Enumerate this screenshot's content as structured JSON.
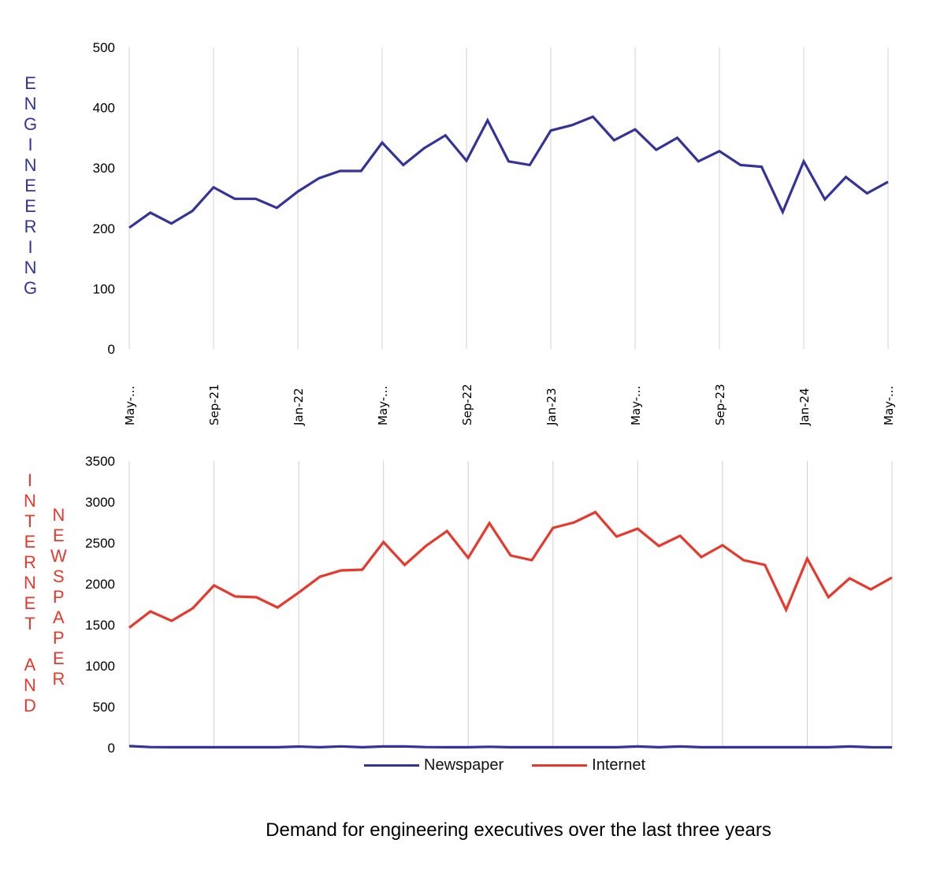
{
  "chart_data": [
    {
      "type": "line",
      "title": "",
      "ylabel": "ENGINEERING",
      "xlabel": "",
      "ylim": [
        0,
        500
      ],
      "yticks": [
        0,
        100,
        200,
        300,
        400,
        500
      ],
      "x": [
        "May-21",
        "Jun-21",
        "Jul-21",
        "Aug-21",
        "Sep-21",
        "Oct-21",
        "Nov-21",
        "Dec-21",
        "Jan-22",
        "Feb-22",
        "Mar-22",
        "Apr-22",
        "May-22",
        "Jun-22",
        "Jul-22",
        "Aug-22",
        "Sep-22",
        "Oct-22",
        "Nov-22",
        "Dec-22",
        "Jan-23",
        "Feb-23",
        "Mar-23",
        "Apr-23",
        "May-23",
        "Jun-23",
        "Jul-23",
        "Aug-23",
        "Sep-23",
        "Oct-23",
        "Nov-23",
        "Dec-23",
        "Jan-24",
        "Feb-24",
        "Mar-24",
        "Apr-24",
        "May-24"
      ],
      "xtick_labels": [
        {
          "index": 0,
          "label": "May-..."
        },
        {
          "index": 4,
          "label": "Sep-21"
        },
        {
          "index": 8,
          "label": "Jan-22"
        },
        {
          "index": 12,
          "label": "May-..."
        },
        {
          "index": 16,
          "label": "Sep-22"
        },
        {
          "index": 20,
          "label": "Jan-23"
        },
        {
          "index": 24,
          "label": "May-..."
        },
        {
          "index": 28,
          "label": "Sep-23"
        },
        {
          "index": 32,
          "label": "Jan-24"
        },
        {
          "index": 36,
          "label": "May-..."
        }
      ],
      "grid": "vertical",
      "series": [
        {
          "name": "Engineering",
          "color": "#33339a",
          "values": [
            201,
            226,
            208,
            229,
            268,
            249,
            249,
            234,
            261,
            283,
            295,
            295,
            342,
            305,
            333,
            354,
            312,
            379,
            311,
            305,
            362,
            371,
            385,
            346,
            364,
            330,
            350,
            311,
            328,
            305,
            302,
            227,
            311,
            248,
            285,
            258,
            277
          ]
        }
      ]
    },
    {
      "type": "line",
      "title": "Demand for engineering executives over the last three years",
      "ylabel": [
        "INTERNET AND",
        "NEWSPAPER"
      ],
      "xlabel": "",
      "ylim": [
        0,
        3500
      ],
      "yticks": [
        0,
        500,
        1000,
        1500,
        2000,
        2500,
        3000,
        3500
      ],
      "x": [
        "May-21",
        "Jun-21",
        "Jul-21",
        "Aug-21",
        "Sep-21",
        "Oct-21",
        "Nov-21",
        "Dec-21",
        "Jan-22",
        "Feb-22",
        "Mar-22",
        "Apr-22",
        "May-22",
        "Jun-22",
        "Jul-22",
        "Aug-22",
        "Sep-22",
        "Oct-22",
        "Nov-22",
        "Dec-22",
        "Jan-23",
        "Feb-23",
        "Mar-23",
        "Apr-23",
        "May-23",
        "Jun-23",
        "Jul-23",
        "Aug-23",
        "Sep-23",
        "Oct-23",
        "Nov-23",
        "Dec-23",
        "Jan-24",
        "Feb-24",
        "Mar-24",
        "Apr-24",
        "May-24"
      ],
      "grid": "vertical",
      "legend": "bottom",
      "series": [
        {
          "name": "Newspaper",
          "color": "#33339a",
          "values": [
            20,
            8,
            6,
            6,
            6,
            6,
            6,
            6,
            14,
            6,
            16,
            6,
            15,
            15,
            8,
            6,
            6,
            12,
            6,
            6,
            6,
            6,
            6,
            6,
            15,
            6,
            15,
            6,
            6,
            6,
            6,
            6,
            6,
            6,
            15,
            6,
            5
          ]
        },
        {
          "name": "Internet",
          "color": "#e8382c",
          "values": [
            1465,
            1663,
            1548,
            1702,
            1981,
            1846,
            1837,
            1712,
            1894,
            2087,
            2163,
            2173,
            2510,
            2231,
            2462,
            2644,
            2317,
            2740,
            2346,
            2288,
            2683,
            2750,
            2875,
            2577,
            2673,
            2462,
            2587,
            2327,
            2471,
            2288,
            2231,
            1683,
            2308,
            1837,
            2067,
            1933,
            2077
          ]
        }
      ]
    }
  ],
  "labels": {
    "engineering": [
      "E",
      "N",
      "G",
      "I",
      "N",
      "E",
      "E",
      "R",
      "I",
      "N",
      "G"
    ],
    "internet_and": [
      "I",
      "N",
      "T",
      "E",
      "R",
      "N",
      "E",
      "T",
      "",
      "A",
      "N",
      "D"
    ],
    "newspaper": [
      "N",
      "E",
      "W",
      "S",
      "P",
      "A",
      "P",
      "E",
      "R"
    ]
  },
  "legend": {
    "newspaper": "Newspaper",
    "internet": "Internet"
  },
  "title": "Demand for engineering executives over the last three years"
}
